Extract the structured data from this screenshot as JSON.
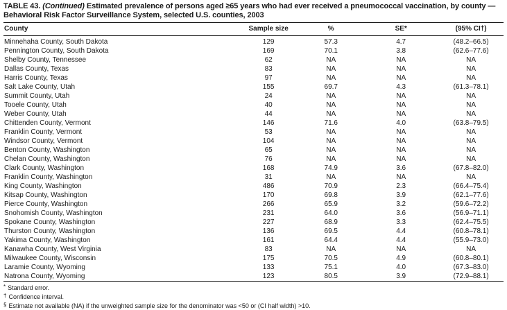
{
  "title": {
    "label": "TABLE 43.",
    "continued": "(Continued)",
    "rest": "Estimated prevalence of persons aged ≥65 years who had ever received a pneumococcal vaccination, by county — Behavioral Risk Factor Surveillance System, selected U.S. counties, 2003"
  },
  "table": {
    "columns": [
      "County",
      "Sample size",
      "%",
      "SE*",
      "(95% CI†)"
    ],
    "rows": [
      {
        "county": "Minnehaha County, South Dakota",
        "sample": "129",
        "pct": "57.3",
        "se": "4.7",
        "ci": "(48.2–66.5)"
      },
      {
        "county": "Pennington County, South Dakota",
        "sample": "169",
        "pct": "70.1",
        "se": "3.8",
        "ci": "(62.6–77.6)"
      },
      {
        "county": "Shelby County, Tennessee",
        "sample": "62",
        "pct": "NA",
        "se": "NA",
        "ci": "NA"
      },
      {
        "county": "Dallas County, Texas",
        "sample": "83",
        "pct": "NA",
        "se": "NA",
        "ci": "NA"
      },
      {
        "county": "Harris County, Texas",
        "sample": "97",
        "pct": "NA",
        "se": "NA",
        "ci": "NA"
      },
      {
        "county": "Salt Lake County, Utah",
        "sample": "155",
        "pct": "69.7",
        "se": "4.3",
        "ci": "(61.3–78.1)"
      },
      {
        "county": "Summit County, Utah",
        "sample": "24",
        "pct": "NA",
        "se": "NA",
        "ci": "NA"
      },
      {
        "county": "Tooele County, Utah",
        "sample": "40",
        "pct": "NA",
        "se": "NA",
        "ci": "NA"
      },
      {
        "county": "Weber County, Utah",
        "sample": "44",
        "pct": "NA",
        "se": "NA",
        "ci": "NA"
      },
      {
        "county": "Chittenden County, Vermont",
        "sample": "146",
        "pct": "71.6",
        "se": "4.0",
        "ci": "(63.8–79.5)"
      },
      {
        "county": "Franklin County, Vermont",
        "sample": "53",
        "pct": "NA",
        "se": "NA",
        "ci": "NA"
      },
      {
        "county": "Windsor County, Vermont",
        "sample": "104",
        "pct": "NA",
        "se": "NA",
        "ci": "NA"
      },
      {
        "county": "Benton County, Washington",
        "sample": "65",
        "pct": "NA",
        "se": "NA",
        "ci": "NA"
      },
      {
        "county": "Chelan County, Washington",
        "sample": "76",
        "pct": "NA",
        "se": "NA",
        "ci": "NA"
      },
      {
        "county": "Clark County, Washington",
        "sample": "168",
        "pct": "74.9",
        "se": "3.6",
        "ci": "(67.8–82.0)"
      },
      {
        "county": "Franklin County, Washington",
        "sample": "31",
        "pct": "NA",
        "se": "NA",
        "ci": "NA"
      },
      {
        "county": "King County, Washington",
        "sample": "486",
        "pct": "70.9",
        "se": "2.3",
        "ci": "(66.4–75.4)"
      },
      {
        "county": "Kitsap County, Washington",
        "sample": "170",
        "pct": "69.8",
        "se": "3.9",
        "ci": "(62.1–77.6)"
      },
      {
        "county": "Pierce County, Washington",
        "sample": "266",
        "pct": "65.9",
        "se": "3.2",
        "ci": "(59.6–72.2)"
      },
      {
        "county": "Snohomish County, Washington",
        "sample": "231",
        "pct": "64.0",
        "se": "3.6",
        "ci": "(56.9–71.1)"
      },
      {
        "county": "Spokane County, Washington",
        "sample": "227",
        "pct": "68.9",
        "se": "3.3",
        "ci": "(62.4–75.5)"
      },
      {
        "county": "Thurston County, Washington",
        "sample": "136",
        "pct": "69.5",
        "se": "4.4",
        "ci": "(60.8–78.1)"
      },
      {
        "county": "Yakima County, Washington",
        "sample": "161",
        "pct": "64.4",
        "se": "4.4",
        "ci": "(55.9–73.0)"
      },
      {
        "county": "Kanawha County, West Virginia",
        "sample": "83",
        "pct": "NA",
        "se": "NA",
        "ci": "NA"
      },
      {
        "county": "Milwaukee County, Wisconsin",
        "sample": "175",
        "pct": "70.5",
        "se": "4.9",
        "ci": "(60.8–80.1)"
      },
      {
        "county": "Laramie County, Wyoming",
        "sample": "133",
        "pct": "75.1",
        "se": "4.0",
        "ci": "(67.3–83.0)"
      },
      {
        "county": "Natrona County, Wyoming",
        "sample": "123",
        "pct": "80.5",
        "se": "3.9",
        "ci": "(72.9–88.1)"
      }
    ]
  },
  "footnotes": [
    {
      "symbol": "*",
      "text": "Standard error."
    },
    {
      "symbol": "†",
      "text": "Confidence interval."
    },
    {
      "symbol": "§",
      "text": "Estimate not available (NA) if the unweighted sample size for the denominator was <50 or (CI half width) >10."
    }
  ]
}
